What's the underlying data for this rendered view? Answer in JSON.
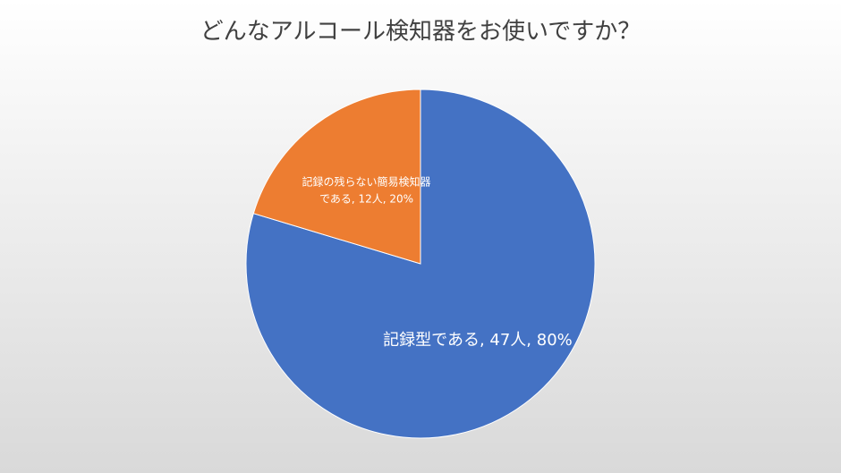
{
  "chart_data": {
    "type": "pie",
    "title": "どんなアルコール検知器をお使いですか？",
    "values": [
      47,
      12
    ],
    "value_labels": [
      [
        "記録型である, 47人, 80%"
      ],
      [
        "記録の残らない簡易検知器",
        "である, 12人, 20%"
      ]
    ],
    "colors": [
      "#4472c4",
      "#ed7d31"
    ]
  }
}
